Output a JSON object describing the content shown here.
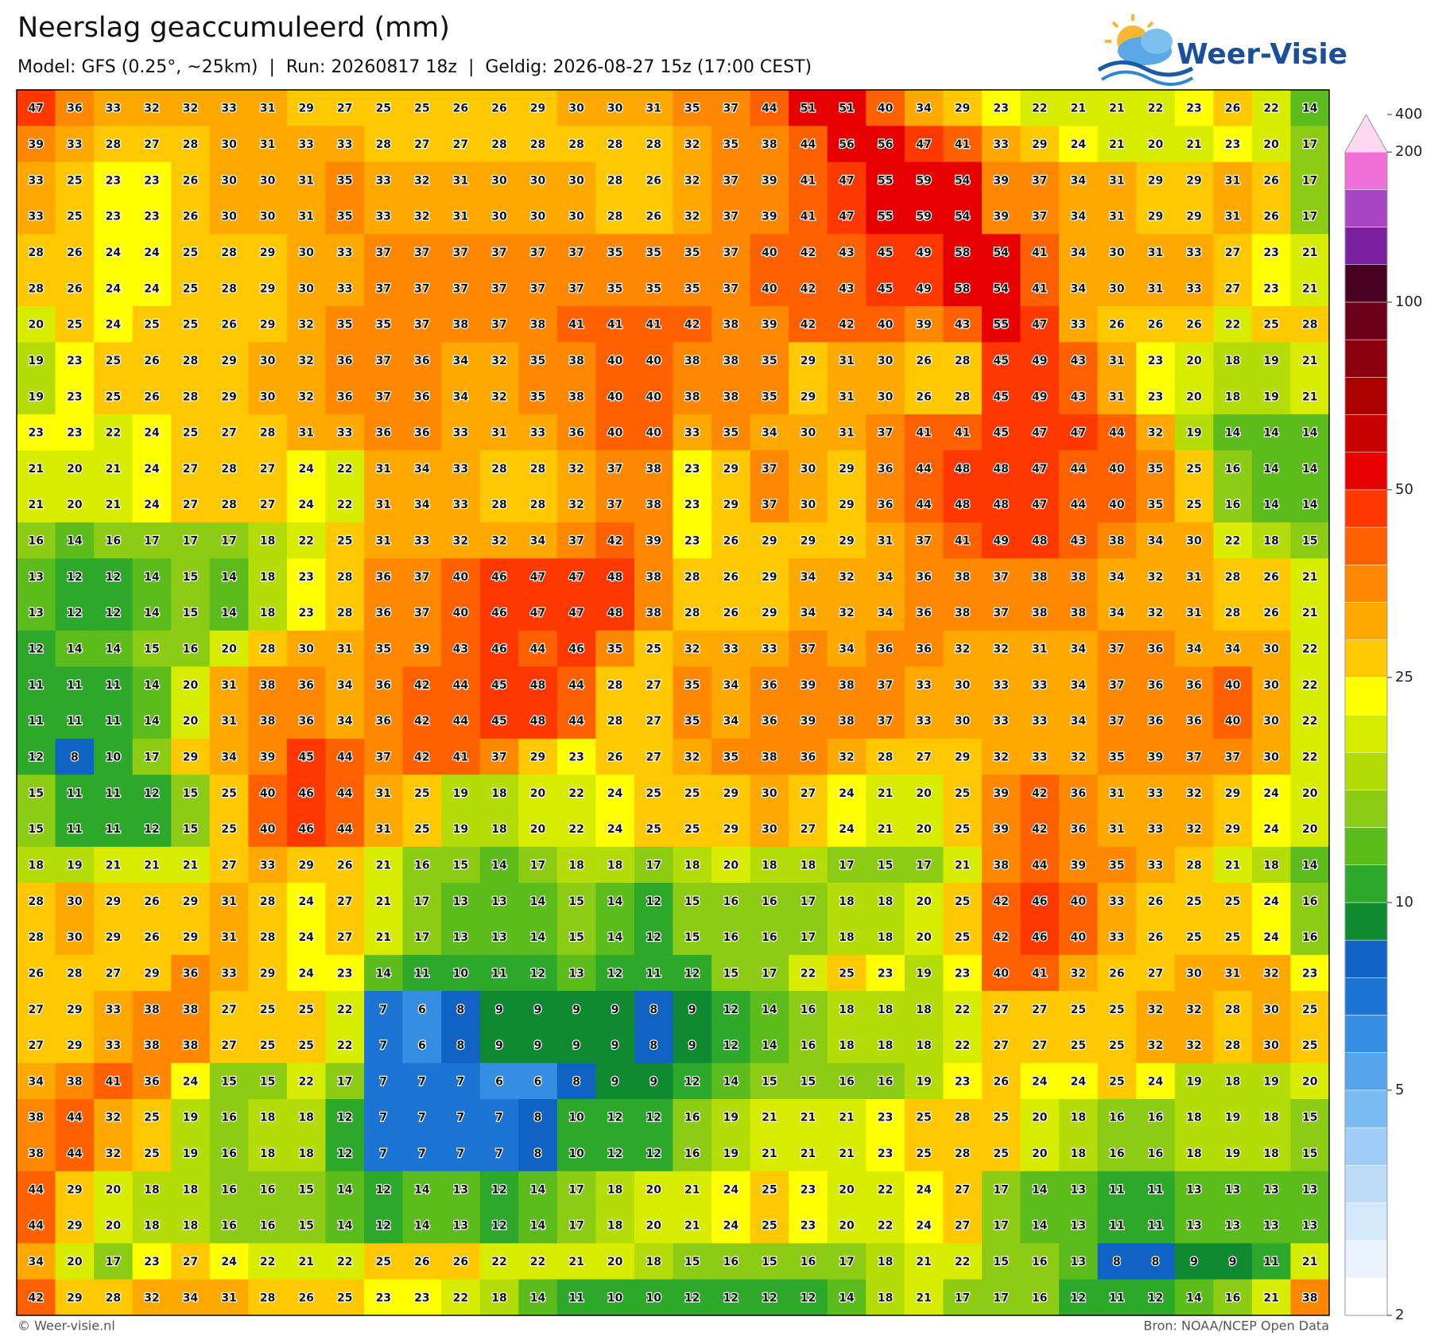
{
  "header": {
    "title": "Neerslag geaccumuleerd (mm)",
    "subtitle": "Model: GFS (0.25°, ~25km)  |  Run: 20260817 18z  |  Geldig: 2026-08-27 15z (17:00 CEST)",
    "logo": "Weer-Visie"
  },
  "grid": {
    "rows": [
      [
        47,
        36,
        33,
        32,
        32,
        33,
        31,
        29,
        27,
        25,
        25,
        26,
        26,
        29,
        30,
        30,
        31,
        35,
        37,
        44,
        51,
        51,
        40,
        34,
        29,
        23,
        22,
        21,
        21,
        22,
        23,
        26,
        22,
        14
      ],
      [
        39,
        33,
        28,
        27,
        28,
        30,
        31,
        33,
        33,
        28,
        27,
        27,
        28,
        28,
        28,
        28,
        28,
        32,
        35,
        38,
        44,
        56,
        56,
        47,
        41,
        33,
        29,
        24,
        21,
        20,
        21,
        23,
        20,
        17
      ],
      [
        33,
        25,
        23,
        23,
        26,
        30,
        30,
        31,
        35,
        33,
        32,
        31,
        30,
        30,
        30,
        28,
        26,
        32,
        37,
        39,
        41,
        47,
        55,
        59,
        54,
        39,
        37,
        34,
        31,
        29,
        29,
        31,
        26,
        17
      ],
      [
        33,
        25,
        23,
        23,
        26,
        30,
        30,
        31,
        35,
        33,
        32,
        31,
        30,
        30,
        30,
        28,
        26,
        32,
        37,
        39,
        41,
        47,
        55,
        59,
        54,
        39,
        37,
        34,
        31,
        29,
        29,
        31,
        26,
        17
      ],
      [
        28,
        26,
        24,
        24,
        25,
        28,
        29,
        30,
        33,
        37,
        37,
        37,
        37,
        37,
        37,
        35,
        35,
        35,
        37,
        40,
        42,
        43,
        45,
        49,
        58,
        54,
        41,
        34,
        30,
        31,
        33,
        27,
        23,
        21
      ],
      [
        28,
        26,
        24,
        24,
        25,
        28,
        29,
        30,
        33,
        37,
        37,
        37,
        37,
        37,
        37,
        35,
        35,
        35,
        37,
        40,
        42,
        43,
        45,
        49,
        58,
        54,
        41,
        34,
        30,
        31,
        33,
        27,
        23,
        21
      ],
      [
        20,
        25,
        24,
        25,
        25,
        26,
        29,
        32,
        35,
        35,
        37,
        38,
        37,
        38,
        41,
        41,
        41,
        42,
        38,
        39,
        42,
        42,
        40,
        39,
        43,
        55,
        47,
        33,
        26,
        26,
        26,
        22,
        25,
        28
      ],
      [
        19,
        23,
        25,
        26,
        28,
        29,
        30,
        32,
        36,
        37,
        36,
        34,
        32,
        35,
        38,
        40,
        40,
        38,
        38,
        35,
        29,
        31,
        30,
        26,
        28,
        45,
        49,
        43,
        31,
        23,
        20,
        18,
        19,
        21
      ],
      [
        19,
        23,
        25,
        26,
        28,
        29,
        30,
        32,
        36,
        37,
        36,
        34,
        32,
        35,
        38,
        40,
        40,
        38,
        38,
        35,
        29,
        31,
        30,
        26,
        28,
        45,
        49,
        43,
        31,
        23,
        20,
        18,
        19,
        21
      ],
      [
        23,
        23,
        22,
        24,
        25,
        27,
        28,
        31,
        33,
        36,
        36,
        33,
        31,
        33,
        36,
        40,
        40,
        33,
        35,
        34,
        30,
        31,
        37,
        41,
        41,
        45,
        47,
        47,
        44,
        32,
        19,
        14,
        14,
        14
      ],
      [
        21,
        20,
        21,
        24,
        27,
        28,
        27,
        24,
        22,
        31,
        34,
        33,
        28,
        28,
        32,
        37,
        38,
        23,
        29,
        37,
        30,
        29,
        36,
        44,
        48,
        48,
        47,
        44,
        40,
        35,
        25,
        16,
        14,
        14
      ],
      [
        21,
        20,
        21,
        24,
        27,
        28,
        27,
        24,
        22,
        31,
        34,
        33,
        28,
        28,
        32,
        37,
        38,
        23,
        29,
        37,
        30,
        29,
        36,
        44,
        48,
        48,
        47,
        44,
        40,
        35,
        25,
        16,
        14,
        14
      ],
      [
        16,
        14,
        16,
        17,
        17,
        17,
        18,
        22,
        25,
        31,
        33,
        32,
        32,
        34,
        37,
        42,
        39,
        23,
        26,
        29,
        29,
        29,
        31,
        37,
        41,
        49,
        48,
        43,
        38,
        34,
        30,
        22,
        18,
        15
      ],
      [
        13,
        12,
        12,
        14,
        15,
        14,
        18,
        23,
        28,
        36,
        37,
        40,
        46,
        47,
        47,
        48,
        38,
        28,
        26,
        29,
        34,
        32,
        34,
        36,
        38,
        37,
        38,
        38,
        34,
        32,
        31,
        28,
        26,
        21
      ],
      [
        13,
        12,
        12,
        14,
        15,
        14,
        18,
        23,
        28,
        36,
        37,
        40,
        46,
        47,
        47,
        48,
        38,
        28,
        26,
        29,
        34,
        32,
        34,
        36,
        38,
        37,
        38,
        38,
        34,
        32,
        31,
        28,
        26,
        21
      ],
      [
        12,
        14,
        14,
        15,
        16,
        20,
        28,
        30,
        31,
        35,
        39,
        43,
        46,
        44,
        46,
        35,
        25,
        32,
        33,
        33,
        37,
        34,
        36,
        36,
        32,
        32,
        31,
        34,
        37,
        36,
        34,
        34,
        30,
        22
      ],
      [
        11,
        11,
        11,
        14,
        20,
        31,
        38,
        36,
        34,
        36,
        42,
        44,
        45,
        48,
        44,
        28,
        27,
        35,
        34,
        36,
        39,
        38,
        37,
        33,
        30,
        33,
        33,
        34,
        37,
        36,
        36,
        40,
        30,
        22
      ],
      [
        11,
        11,
        11,
        14,
        20,
        31,
        38,
        36,
        34,
        36,
        42,
        44,
        45,
        48,
        44,
        28,
        27,
        35,
        34,
        36,
        39,
        38,
        37,
        33,
        30,
        33,
        33,
        34,
        37,
        36,
        36,
        40,
        30,
        22
      ],
      [
        12,
        8,
        10,
        17,
        29,
        34,
        39,
        45,
        44,
        37,
        42,
        41,
        37,
        29,
        23,
        26,
        27,
        32,
        35,
        38,
        36,
        32,
        28,
        27,
        29,
        32,
        33,
        32,
        35,
        39,
        37,
        37,
        30,
        22
      ],
      [
        15,
        11,
        11,
        12,
        15,
        25,
        40,
        46,
        44,
        31,
        25,
        19,
        18,
        20,
        22,
        24,
        25,
        25,
        29,
        30,
        27,
        24,
        21,
        20,
        25,
        39,
        42,
        36,
        31,
        33,
        32,
        29,
        24,
        20
      ],
      [
        15,
        11,
        11,
        12,
        15,
        25,
        40,
        46,
        44,
        31,
        25,
        19,
        18,
        20,
        22,
        24,
        25,
        25,
        29,
        30,
        27,
        24,
        21,
        20,
        25,
        39,
        42,
        36,
        31,
        33,
        32,
        29,
        24,
        20
      ],
      [
        18,
        19,
        21,
        21,
        21,
        27,
        33,
        29,
        26,
        21,
        16,
        15,
        14,
        17,
        18,
        18,
        17,
        18,
        20,
        18,
        18,
        17,
        15,
        17,
        21,
        38,
        44,
        39,
        35,
        33,
        28,
        21,
        18,
        14
      ],
      [
        28,
        30,
        29,
        26,
        29,
        31,
        28,
        24,
        27,
        21,
        17,
        13,
        13,
        14,
        15,
        14,
        12,
        15,
        16,
        16,
        17,
        18,
        18,
        20,
        25,
        42,
        46,
        40,
        33,
        26,
        25,
        25,
        24,
        16
      ],
      [
        28,
        30,
        29,
        26,
        29,
        31,
        28,
        24,
        27,
        21,
        17,
        13,
        13,
        14,
        15,
        14,
        12,
        15,
        16,
        16,
        17,
        18,
        18,
        20,
        25,
        42,
        46,
        40,
        33,
        26,
        25,
        25,
        24,
        16
      ],
      [
        26,
        28,
        27,
        29,
        36,
        33,
        29,
        24,
        23,
        14,
        11,
        10,
        11,
        12,
        13,
        12,
        11,
        12,
        15,
        17,
        22,
        25,
        23,
        19,
        23,
        40,
        41,
        32,
        26,
        27,
        30,
        31,
        32,
        23
      ],
      [
        27,
        29,
        33,
        38,
        38,
        27,
        25,
        25,
        22,
        7,
        6,
        8,
        9,
        9,
        9,
        9,
        8,
        9,
        12,
        14,
        16,
        18,
        18,
        18,
        22,
        27,
        27,
        25,
        25,
        32,
        32,
        28,
        30,
        25
      ],
      [
        27,
        29,
        33,
        38,
        38,
        27,
        25,
        25,
        22,
        7,
        6,
        8,
        9,
        9,
        9,
        9,
        8,
        9,
        12,
        14,
        16,
        18,
        18,
        18,
        22,
        27,
        27,
        25,
        25,
        32,
        32,
        28,
        30,
        25
      ],
      [
        34,
        38,
        41,
        36,
        24,
        15,
        15,
        22,
        17,
        7,
        7,
        7,
        6,
        6,
        8,
        9,
        9,
        12,
        14,
        15,
        15,
        16,
        16,
        19,
        23,
        26,
        24,
        24,
        25,
        24,
        19,
        18,
        19,
        20
      ],
      [
        38,
        44,
        32,
        25,
        19,
        16,
        18,
        18,
        12,
        7,
        7,
        7,
        7,
        8,
        10,
        12,
        12,
        16,
        19,
        21,
        21,
        21,
        23,
        25,
        28,
        25,
        20,
        18,
        16,
        16,
        18,
        19,
        18,
        15
      ],
      [
        38,
        44,
        32,
        25,
        19,
        16,
        18,
        18,
        12,
        7,
        7,
        7,
        7,
        8,
        10,
        12,
        12,
        16,
        19,
        21,
        21,
        21,
        23,
        25,
        28,
        25,
        20,
        18,
        16,
        16,
        18,
        19,
        18,
        15
      ],
      [
        44,
        29,
        20,
        18,
        18,
        16,
        16,
        15,
        14,
        12,
        14,
        13,
        12,
        14,
        17,
        18,
        20,
        21,
        24,
        25,
        23,
        20,
        22,
        24,
        27,
        17,
        14,
        13,
        11,
        11,
        13,
        13,
        13,
        13
      ],
      [
        44,
        29,
        20,
        18,
        18,
        16,
        16,
        15,
        14,
        12,
        14,
        13,
        12,
        14,
        17,
        18,
        20,
        21,
        24,
        25,
        23,
        20,
        22,
        24,
        27,
        17,
        14,
        13,
        11,
        11,
        13,
        13,
        13,
        13
      ],
      [
        34,
        20,
        17,
        23,
        27,
        24,
        22,
        21,
        22,
        25,
        26,
        26,
        22,
        22,
        21,
        20,
        18,
        15,
        16,
        15,
        16,
        17,
        18,
        21,
        22,
        15,
        16,
        13,
        8,
        8,
        9,
        9,
        11,
        21
      ],
      [
        42,
        29,
        28,
        32,
        34,
        31,
        28,
        26,
        25,
        23,
        23,
        22,
        18,
        14,
        11,
        10,
        10,
        12,
        12,
        12,
        12,
        14,
        18,
        21,
        17,
        17,
        16,
        12,
        11,
        12,
        14,
        16,
        21,
        38
      ]
    ]
  },
  "colorbar": {
    "ticks": [
      2,
      5,
      10,
      25,
      50,
      100,
      200,
      400
    ],
    "levels": [
      2,
      2.5,
      3,
      3.5,
      4,
      4.5,
      5,
      6,
      7,
      8,
      9,
      10,
      12.5,
      15,
      17.5,
      20,
      22.5,
      25,
      30,
      35,
      40,
      45,
      50,
      60,
      70,
      80,
      90,
      100,
      125,
      150,
      175,
      200,
      400
    ],
    "colors": [
      "#ffffff",
      "#eaf3fd",
      "#d4e8fb",
      "#bcdcfa",
      "#a0cef8",
      "#7cbaf2",
      "#55a4ec",
      "#358ee2",
      "#1c74d4",
      "#1062c4",
      "#0f8a30",
      "#2ea82a",
      "#5cbc1c",
      "#8ccc14",
      "#b4dc08",
      "#d8ec00",
      "#ffff00",
      "#ffc800",
      "#ffa800",
      "#ff8800",
      "#ff6000",
      "#ff3800",
      "#e60000",
      "#c80000",
      "#aa0000",
      "#8c0010",
      "#6c0018",
      "#4a0020",
      "#7a1fa0",
      "#a845c4",
      "#f070d8",
      "#ffd8f2"
    ]
  },
  "footer": {
    "left": "© Weer-visie.nl",
    "right": "Bron: NOAA/NCEP Open Data"
  }
}
